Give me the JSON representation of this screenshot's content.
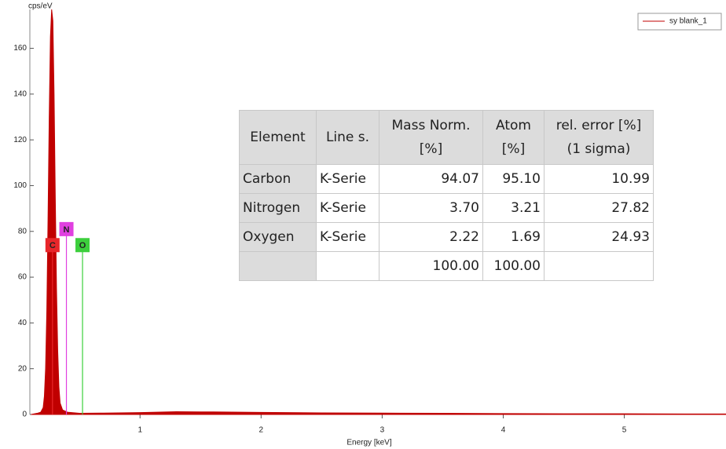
{
  "chart_data": {
    "type": "area",
    "y_label": "cps/eV",
    "x_label": "Energy [keV]",
    "xlim": [
      0.09,
      5.84
    ],
    "xticks": [
      1,
      2,
      3,
      4,
      5
    ],
    "ylim": [
      0,
      177
    ],
    "yticks": [
      0,
      20,
      40,
      60,
      80,
      100,
      120,
      140,
      160
    ],
    "x": [
      0.1,
      0.15,
      0.18,
      0.2,
      0.21,
      0.22,
      0.23,
      0.24,
      0.25,
      0.26,
      0.27,
      0.28,
      0.29,
      0.3,
      0.31,
      0.32,
      0.33,
      0.34,
      0.36,
      0.4,
      0.5,
      0.7,
      1.0,
      1.3,
      1.6,
      2.0,
      2.5,
      3.0,
      3.5,
      4.0,
      4.5,
      5.0,
      5.5,
      5.84
    ],
    "series": [
      {
        "name": "sy blank_1",
        "color": "#c00000",
        "values": [
          0,
          0.5,
          1,
          3,
          8,
          20,
          45,
          85,
          130,
          165,
          177,
          172,
          140,
          95,
          55,
          28,
          12,
          5,
          2,
          1,
          0.5,
          0.6,
          0.8,
          1.2,
          1.1,
          0.9,
          0.7,
          0.6,
          0.5,
          0.4,
          0.3,
          0.3,
          0.2,
          0.2
        ]
      }
    ],
    "legend": "top-right",
    "markers": [
      {
        "label": "C",
        "x": 0.277,
        "y": 74,
        "color": "#e8262a"
      },
      {
        "label": "N",
        "x": 0.392,
        "y": 81,
        "color": "#e040e0"
      },
      {
        "label": "O",
        "x": 0.525,
        "y": 74,
        "color": "#3ccf3c"
      }
    ]
  },
  "table": {
    "header": [
      [
        "Element"
      ],
      [
        "Line s."
      ],
      [
        "Mass Norm.",
        "[%]"
      ],
      [
        "Atom",
        "[%]"
      ],
      [
        "rel. error [%]",
        "(1 sigma)"
      ]
    ],
    "rows": [
      [
        "Carbon",
        "K-Serie",
        "94.07",
        "95.10",
        "10.99"
      ],
      [
        "Nitrogen",
        "K-Serie",
        "3.70",
        "3.21",
        "27.82"
      ],
      [
        "Oxygen",
        "K-Serie",
        "2.22",
        "1.69",
        "24.93"
      ],
      [
        null,
        null,
        "100.00",
        "100.00",
        null
      ]
    ]
  }
}
